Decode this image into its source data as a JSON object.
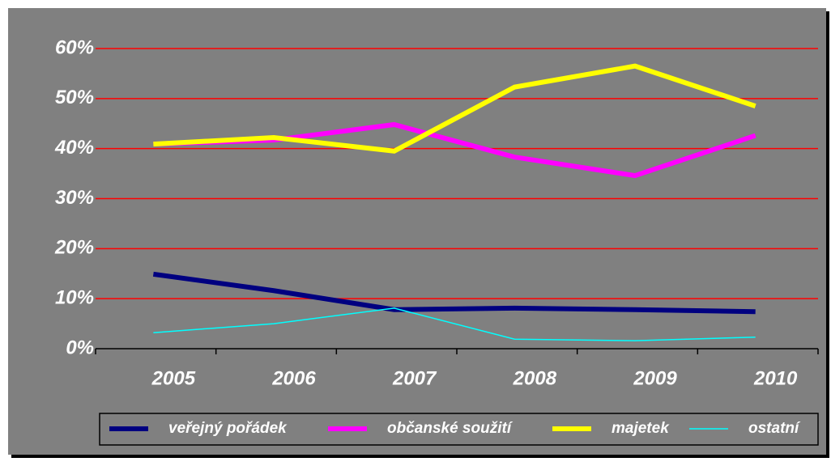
{
  "chart_data": {
    "type": "line",
    "categories": [
      "2005",
      "2006",
      "2007",
      "2008",
      "2009",
      "2010"
    ],
    "series": [
      {
        "name": "veřejný pořádek",
        "color": "#000080",
        "values": [
          14.9,
          11.6,
          7.8,
          8.1,
          7.8,
          7.4
        ]
      },
      {
        "name": "občanské soužití",
        "color": "#ff00ff",
        "values": [
          40.9,
          41.7,
          44.8,
          38.3,
          34.6,
          42.6
        ]
      },
      {
        "name": "majetek",
        "color": "#ffff00",
        "values": [
          40.9,
          42.2,
          39.5,
          52.3,
          56.5,
          48.5
        ]
      },
      {
        "name": "ostatní",
        "color": "#00ffff",
        "values": [
          3.2,
          5.0,
          8.1,
          1.9,
          1.6,
          2.3
        ]
      }
    ],
    "ylim": [
      0,
      60
    ],
    "yticks": [
      {
        "value": 0,
        "label": "0%"
      },
      {
        "value": 10,
        "label": "10%"
      },
      {
        "value": 20,
        "label": "20%"
      },
      {
        "value": 30,
        "label": "30%"
      },
      {
        "value": 40,
        "label": "40%"
      },
      {
        "value": 50,
        "label": "50%"
      },
      {
        "value": 60,
        "label": "60%"
      }
    ],
    "grid": true,
    "legend": "bottom"
  }
}
